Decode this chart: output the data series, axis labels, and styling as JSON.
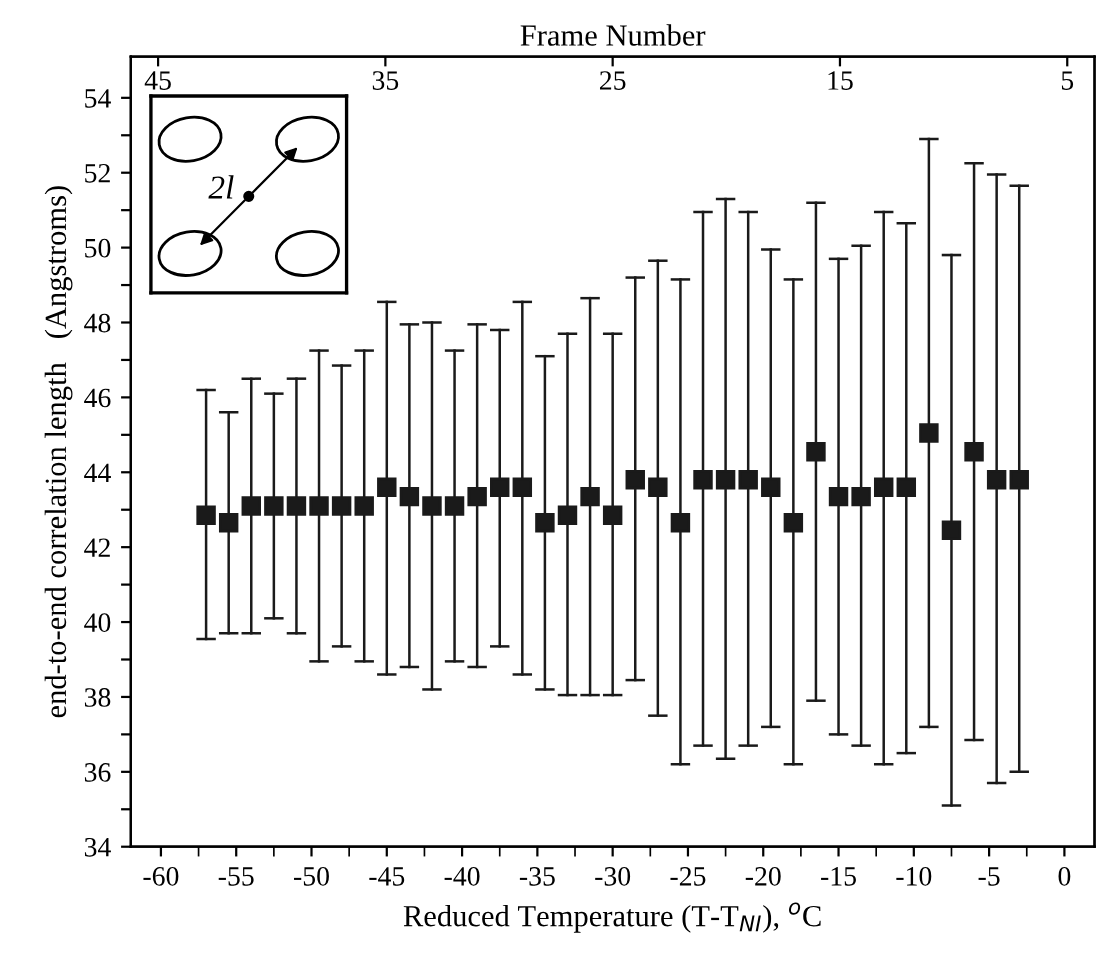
{
  "chart_data": {
    "type": "scatter",
    "xlabel": "Reduced Temperature (T-T$_{NI}$), $^{o}$C",
    "ylabel": "end-to-end correlation length   (Angstroms)",
    "x2label": "Frame Number",
    "annotations": [
      "2l"
    ],
    "x": [
      -57,
      -55.5,
      -54,
      -52.5,
      -51,
      -49.5,
      -48,
      -46.5,
      -45,
      -43.5,
      -42,
      -40.5,
      -39,
      -37.5,
      -36,
      -34.5,
      -33,
      -31.5,
      -30,
      -28.5,
      -27,
      -25.5,
      -24,
      -22.5,
      -21,
      -19.5,
      -18,
      -16.5,
      -15,
      -13.5,
      -12,
      -10.5,
      -9,
      -7.5,
      -6,
      -4.5,
      -3
    ],
    "series": [
      {
        "color": "#1a1a1a",
        "values": [
          42.85,
          42.65,
          43.1,
          43.1,
          43.1,
          43.1,
          43.1,
          43.1,
          43.6,
          43.35,
          43.1,
          43.1,
          43.35,
          43.6,
          43.6,
          42.65,
          42.85,
          43.35,
          42.85,
          43.8,
          43.6,
          42.65,
          43.8,
          43.8,
          43.8,
          43.6,
          42.65,
          44.55,
          43.35,
          43.35,
          43.6,
          43.6,
          45.05,
          42.45,
          44.55,
          43.8,
          43.8
        ],
        "errors": [
          [
            39.55,
            46.2
          ],
          [
            39.7,
            45.6
          ],
          [
            39.7,
            46.5
          ],
          [
            40.1,
            46.1
          ],
          [
            39.7,
            46.5
          ],
          [
            38.95,
            47.25
          ],
          [
            39.35,
            46.85
          ],
          [
            38.95,
            47.25
          ],
          [
            38.6,
            48.55
          ],
          [
            38.8,
            47.95
          ],
          [
            38.2,
            48.0
          ],
          [
            38.95,
            47.25
          ],
          [
            38.8,
            47.95
          ],
          [
            39.35,
            47.8
          ],
          [
            38.6,
            48.55
          ],
          [
            38.2,
            47.1
          ],
          [
            38.05,
            47.7
          ],
          [
            38.05,
            48.65
          ],
          [
            38.05,
            47.7
          ],
          [
            38.45,
            49.2
          ],
          [
            37.5,
            49.65
          ],
          [
            36.2,
            49.15
          ],
          [
            36.7,
            50.95
          ],
          [
            36.35,
            51.3
          ],
          [
            36.7,
            50.95
          ],
          [
            37.2,
            49.95
          ],
          [
            36.2,
            49.15
          ],
          [
            37.9,
            51.2
          ],
          [
            37.0,
            49.7
          ],
          [
            36.7,
            50.05
          ],
          [
            36.2,
            50.95
          ],
          [
            36.5,
            50.65
          ],
          [
            37.2,
            52.9
          ],
          [
            35.1,
            49.8
          ],
          [
            36.85,
            52.25
          ],
          [
            35.7,
            51.95
          ],
          [
            36.0,
            51.65
          ]
        ]
      }
    ],
    "marker": "square",
    "xlim": [
      -62,
      2
    ],
    "xticks": [
      -60,
      -55,
      -50,
      -45,
      -40,
      -35,
      -30,
      -25,
      -20,
      -15,
      -10,
      -5,
      0
    ],
    "ylim": [
      34,
      55.1
    ],
    "yticks": [
      34,
      {
        "value": 35,
        "label": null
      },
      36,
      {
        "value": 37,
        "label": null
      },
      38,
      {
        "value": 39,
        "label": null
      },
      40,
      {
        "value": 41,
        "label": null
      },
      42,
      {
        "value": 43,
        "label": null
      },
      44,
      {
        "value": 45,
        "label": null
      },
      46,
      {
        "value": 47,
        "label": null
      },
      48,
      {
        "value": 49,
        "label": null
      },
      50,
      {
        "value": 51,
        "label": null
      },
      52,
      {
        "value": 53,
        "label": null
      },
      54
    ],
    "x2lim": [
      46.2,
      3.8
    ],
    "x2ticks": [
      45,
      35,
      25,
      15,
      5
    ],
    "grid": false,
    "legend": false
  }
}
